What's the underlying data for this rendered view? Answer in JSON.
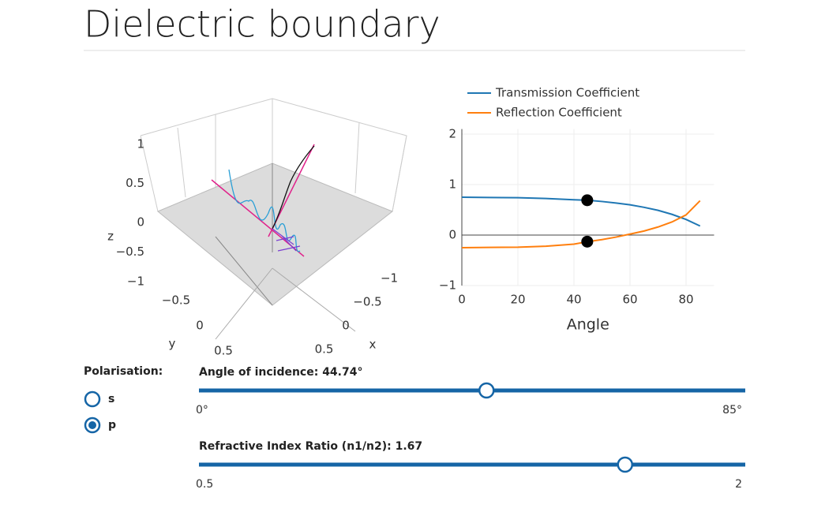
{
  "header": {
    "title": "Dielectric boundary"
  },
  "plot3d": {
    "x_label": "x",
    "y_label": "y",
    "z_label": "z",
    "xticks": [
      {
        "value": -1,
        "label": "−1"
      },
      {
        "value": -0.5,
        "label": "−0.5"
      },
      0,
      0.5
    ],
    "yticks": [
      {
        "value": -0.5,
        "label": "−0.5"
      },
      0,
      0.5
    ],
    "zticks": [
      1,
      0.5,
      0,
      {
        "value": -0.5,
        "label": "−0.5"
      },
      {
        "value": -1,
        "label": "−1"
      }
    ]
  },
  "chart_data": {
    "type": "line",
    "x_label": "Angle",
    "x": [
      0,
      10,
      20,
      30,
      40,
      45,
      50,
      55,
      60,
      65,
      70,
      75,
      80,
      85
    ],
    "series": [
      {
        "name": "Transmission Coefficient",
        "color": "#1f77b4",
        "values": [
          0.75,
          0.745,
          0.74,
          0.725,
          0.7,
          0.69,
          0.665,
          0.635,
          0.6,
          0.55,
          0.49,
          0.41,
          0.31,
          0.18
        ]
      },
      {
        "name": "Reflection Coefficient",
        "color": "#ff7f0e",
        "values": [
          -0.25,
          -0.245,
          -0.24,
          -0.22,
          -0.18,
          -0.13,
          -0.09,
          -0.04,
          0.02,
          0.08,
          0.16,
          0.26,
          0.4,
          0.68
        ]
      }
    ],
    "markers": [
      {
        "x": 44.74,
        "y": 0.69
      },
      {
        "x": 44.74,
        "y": -0.13
      }
    ],
    "xlim": [
      0,
      90
    ],
    "ylim": [
      -1,
      2.1
    ],
    "xticks": [
      0,
      20,
      40,
      60,
      80
    ],
    "yticks": [
      2,
      1,
      0,
      {
        "value": -1,
        "label": "−1"
      }
    ],
    "grid": true
  },
  "controls": {
    "polarisation": {
      "label": "Polarisation:",
      "options": [
        "s",
        "p"
      ],
      "selected": "p"
    },
    "angle": {
      "label": "Angle of incidence: 44.74°",
      "value": 44.74,
      "min": {
        "value": 0,
        "label": "0°"
      },
      "max": {
        "value": 85,
        "label": "85°"
      }
    },
    "index": {
      "label": "Refractive Index Ratio (n1/n2): 1.67",
      "value": 1.67,
      "min": 0.5,
      "max": 2
    }
  }
}
